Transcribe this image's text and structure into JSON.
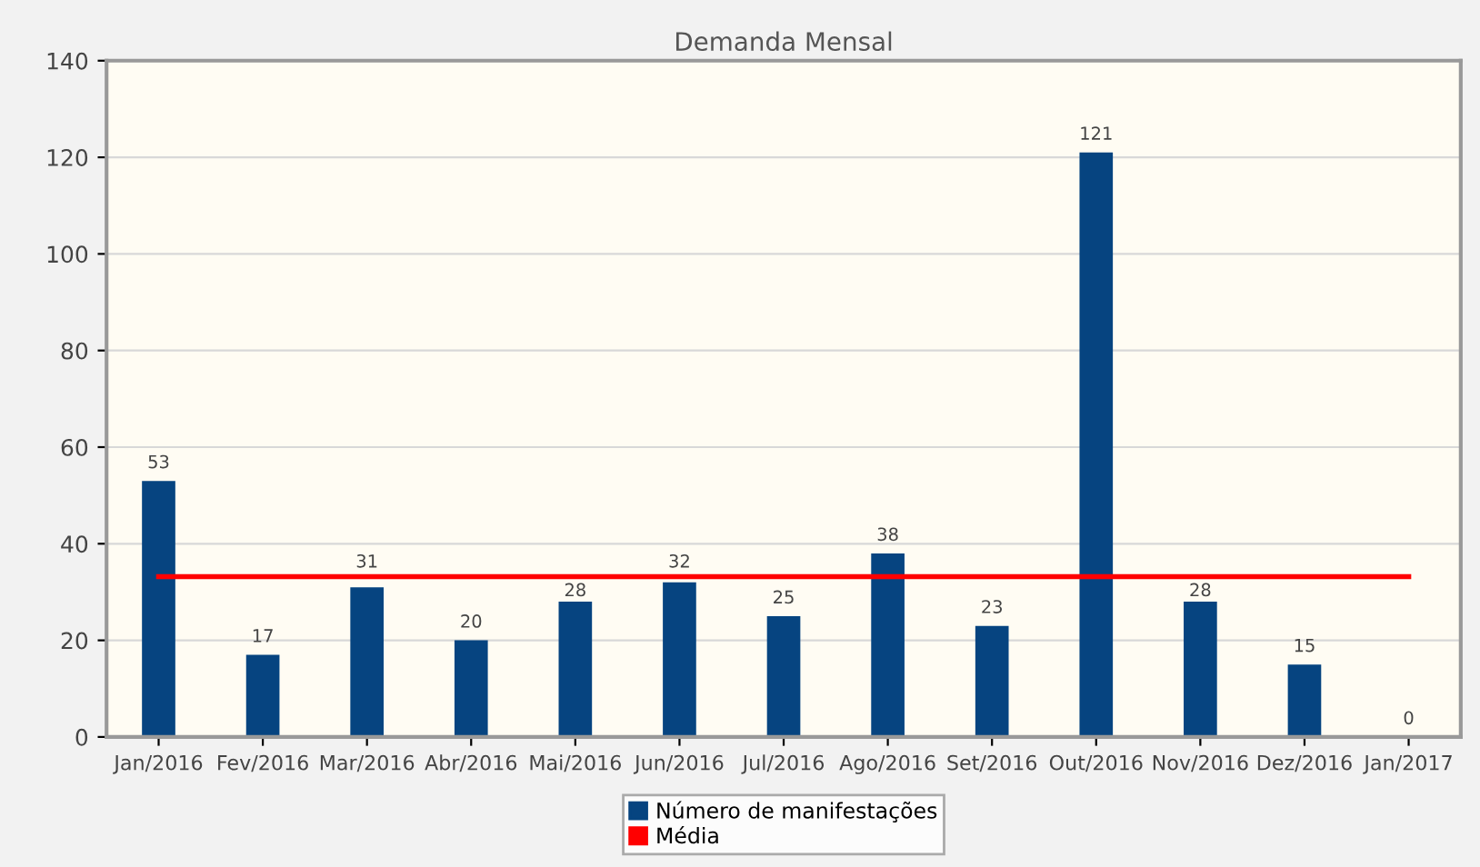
{
  "chart_data": {
    "type": "bar",
    "title": "Demanda Mensal",
    "categories": [
      "Jan/2016",
      "Fev/2016",
      "Mar/2016",
      "Abr/2016",
      "Mai/2016",
      "Jun/2016",
      "Jul/2016",
      "Ago/2016",
      "Set/2016",
      "Out/2016",
      "Nov/2016",
      "Dez/2016",
      "Jan/2017"
    ],
    "series": [
      {
        "name": "Número de manifestações",
        "color": "#064480",
        "values": [
          53,
          17,
          31,
          20,
          28,
          32,
          25,
          38,
          23,
          121,
          28,
          15,
          0
        ],
        "value_labels": [
          "53",
          "17",
          "31",
          "20",
          "28",
          "32",
          "25",
          "38",
          "23",
          "121",
          "28",
          "15",
          "0"
        ]
      },
      {
        "name": "Média",
        "color": "#ff0000",
        "type": "line",
        "values": [
          33.2,
          33.2,
          33.2,
          33.2,
          33.2,
          33.2,
          33.2,
          33.2,
          33.2,
          33.2,
          33.2,
          33.2,
          33.2
        ]
      }
    ],
    "ylim": [
      0,
      140
    ],
    "yticks": [
      0,
      20,
      40,
      60,
      80,
      100,
      120,
      140
    ],
    "grid": "y",
    "legend": "bottom",
    "marker": "none",
    "line_style": "solid"
  }
}
